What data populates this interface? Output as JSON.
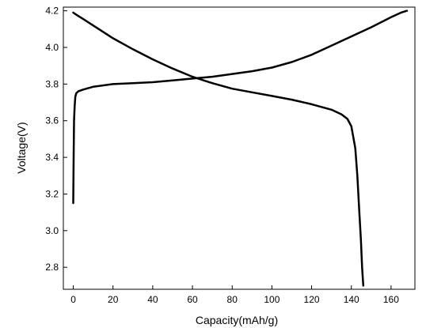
{
  "chart_data": {
    "type": "line",
    "title": "",
    "xlabel": "Capacity(mAh/g)",
    "ylabel": "Voltage(V)",
    "xlim": [
      -5,
      172
    ],
    "ylim": [
      2.68,
      4.22
    ],
    "x_ticks": [
      0,
      20,
      40,
      60,
      80,
      100,
      120,
      140,
      160
    ],
    "y_ticks": [
      2.8,
      3.0,
      3.2,
      3.4,
      3.6,
      3.8,
      4.0,
      4.2
    ],
    "y_tick_labels": [
      "2.8",
      "3.0",
      "3.2",
      "3.4",
      "3.6",
      "3.8",
      "4.0",
      "4.2"
    ],
    "grid": false,
    "legend": "none",
    "line_color": "#000000",
    "series": [
      {
        "x": [
          0,
          0.2,
          0.4,
          0.7,
          1,
          1.5,
          2.5,
          5,
          10,
          20,
          30,
          40,
          50,
          60,
          70,
          80,
          90,
          100,
          110,
          120,
          130,
          140,
          150,
          160,
          165,
          168
        ],
        "y": [
          3.15,
          3.4,
          3.6,
          3.68,
          3.73,
          3.75,
          3.76,
          3.77,
          3.785,
          3.8,
          3.805,
          3.81,
          3.82,
          3.83,
          3.84,
          3.855,
          3.87,
          3.89,
          3.92,
          3.96,
          4.01,
          4.06,
          4.11,
          4.165,
          4.19,
          4.2
        ]
      },
      {
        "x": [
          0,
          2,
          5,
          10,
          20,
          30,
          40,
          50,
          60,
          70,
          80,
          90,
          100,
          110,
          120,
          130,
          135,
          138,
          140,
          142,
          143,
          144,
          144.8,
          145.4,
          146
        ],
        "y": [
          4.19,
          4.175,
          4.155,
          4.12,
          4.05,
          3.99,
          3.935,
          3.885,
          3.84,
          3.805,
          3.775,
          3.755,
          3.735,
          3.715,
          3.69,
          3.66,
          3.635,
          3.61,
          3.57,
          3.45,
          3.3,
          3.1,
          2.95,
          2.8,
          2.7
        ]
      }
    ]
  }
}
